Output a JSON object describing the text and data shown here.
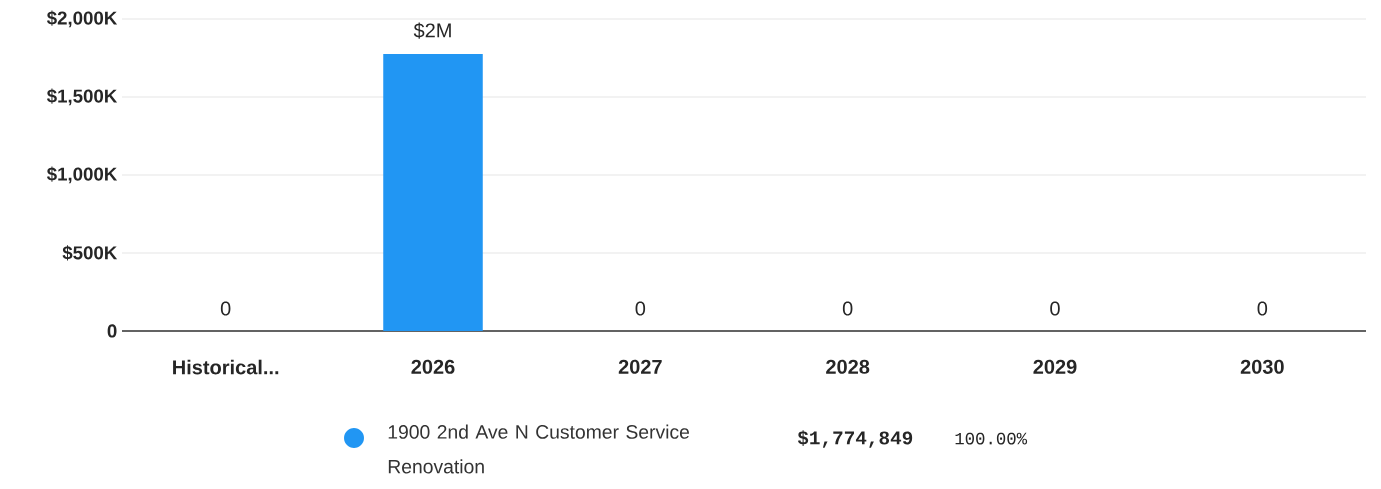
{
  "chart_data": {
    "type": "bar",
    "categories": [
      "Historical...",
      "2026",
      "2027",
      "2028",
      "2029",
      "2030"
    ],
    "series": [
      {
        "name": "1900 2nd Ave N Customer Service Renovation",
        "color": "#2196f3",
        "values": [
          0,
          1774849,
          0,
          0,
          0,
          0
        ],
        "value_labels": [
          "0",
          "$2M",
          "0",
          "0",
          "0",
          "0"
        ]
      }
    ],
    "ylim": [
      0,
      2000000
    ],
    "yticks": [
      {
        "value": 0,
        "label": "0"
      },
      {
        "value": 500000,
        "label": "$500K"
      },
      {
        "value": 1000000,
        "label": "$1,000K"
      },
      {
        "value": 1500000,
        "label": "$1,500K"
      },
      {
        "value": 2000000,
        "label": "$2,000K"
      }
    ],
    "grid": "y",
    "legend": "bottom",
    "annotations": [
      "$1,774,849",
      "100.00%"
    ]
  }
}
